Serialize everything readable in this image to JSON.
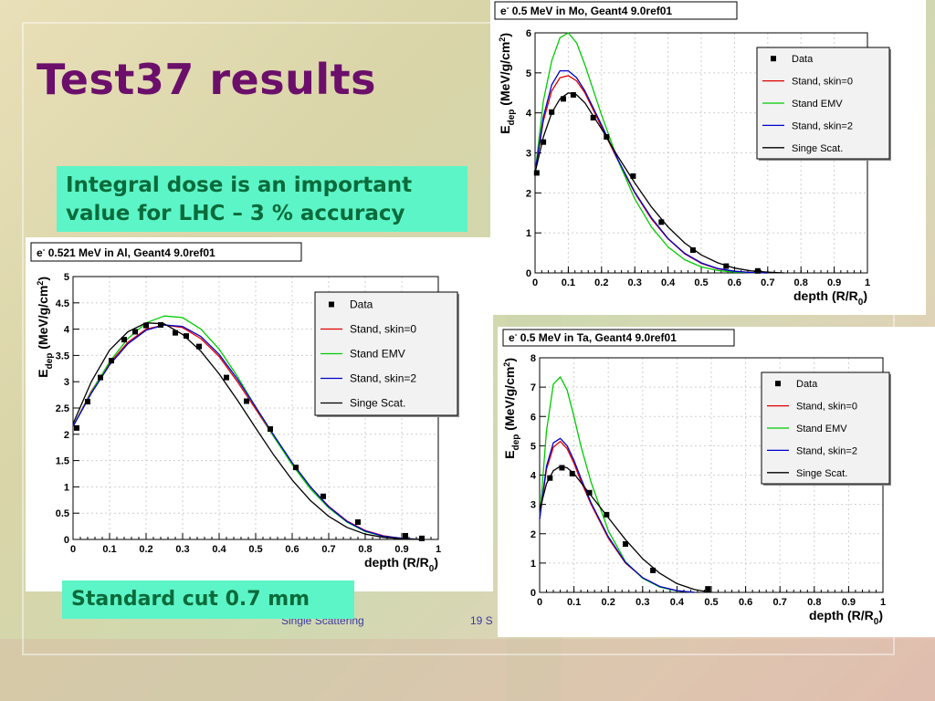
{
  "slide": {
    "title": "Test37 results",
    "note_lines": [
      "Integral dose is an important",
      "value for LHC – 3 % accuracy"
    ],
    "cut_label": "Standard cut 0.7 mm",
    "footer_left": "Single Scattering",
    "footer_right": "19 S"
  },
  "colors": {
    "title": "#6b0f6b",
    "box_bg": "#5cf5c8",
    "box_text": "#0b6b3a",
    "data": "#000000",
    "stand_skin0": "#e00000",
    "stand_emv": "#00cc00",
    "stand_skin2": "#0000cc",
    "singe_scat": "#000000"
  },
  "chart_data": [
    {
      "id": "al",
      "type": "line",
      "title_prefix": "e",
      "title_sup": "-",
      "title_rest": " 0.521 MeV in Al, Geant4 9.0ref01",
      "xlabel_main": "depth (R/R",
      "xlabel_sub": "0",
      "xlabel_end": ")",
      "ylabel_main": "E",
      "ylabel_sub": "dep",
      "ylabel_unit": " (MeV/g/cm",
      "ylabel_sup": "2",
      "ylabel_end": ")",
      "xlim": [
        0,
        1
      ],
      "ylim": [
        0,
        5
      ],
      "xticks": [
        0,
        0.1,
        0.2,
        0.3,
        0.4,
        0.5,
        0.6,
        0.7,
        0.8,
        0.9,
        1
      ],
      "xtick_labels": [
        "0",
        "0.1",
        "0.2",
        "0.3",
        "0.4",
        "0.5",
        "0.6",
        "0.7",
        "0.8",
        "0.9",
        "1"
      ],
      "yticks": [
        0,
        0.5,
        1,
        1.5,
        2,
        2.5,
        3,
        3.5,
        4,
        4.5,
        5
      ],
      "ytick_labels": [
        "0",
        "0.5",
        "1",
        "1.5",
        "2",
        "2.5",
        "3",
        "3.5",
        "4",
        "4.5",
        "5"
      ],
      "grid": true,
      "legend_position": "top-right",
      "points": {
        "name": "Data",
        "x": [
          0.01,
          0.04,
          0.075,
          0.105,
          0.14,
          0.17,
          0.2,
          0.24,
          0.28,
          0.31,
          0.345,
          0.42,
          0.475,
          0.54,
          0.61,
          0.685,
          0.78,
          0.91,
          0.955
        ],
        "y": [
          2.12,
          2.62,
          3.08,
          3.4,
          3.8,
          3.95,
          4.07,
          4.08,
          3.93,
          3.87,
          3.67,
          3.08,
          2.63,
          2.1,
          1.37,
          0.82,
          0.33,
          0.07,
          0.02
        ]
      },
      "series": [
        {
          "name": "Stand, skin=0",
          "color": "#e00000",
          "x": [
            0,
            0.05,
            0.1,
            0.15,
            0.2,
            0.25,
            0.3,
            0.35,
            0.4,
            0.45,
            0.5,
            0.55,
            0.6,
            0.65,
            0.7,
            0.75,
            0.8,
            0.85,
            0.9,
            0.95
          ],
          "y": [
            2.15,
            2.82,
            3.35,
            3.75,
            4.0,
            4.08,
            4.03,
            3.82,
            3.48,
            3.0,
            2.48,
            1.95,
            1.45,
            1.0,
            0.63,
            0.35,
            0.17,
            0.07,
            0.02,
            0
          ]
        },
        {
          "name": "Stand EMV",
          "color": "#00cc00",
          "x": [
            0,
            0.05,
            0.1,
            0.15,
            0.2,
            0.25,
            0.3,
            0.35,
            0.4,
            0.45,
            0.5,
            0.55,
            0.6,
            0.65,
            0.7,
            0.75,
            0.8,
            0.85,
            0.9,
            0.95
          ],
          "y": [
            2.15,
            2.8,
            3.38,
            3.82,
            4.12,
            4.25,
            4.22,
            4.0,
            3.62,
            3.1,
            2.52,
            1.95,
            1.42,
            0.96,
            0.6,
            0.33,
            0.15,
            0.06,
            0.02,
            0
          ]
        },
        {
          "name": "Stand, skin=2",
          "color": "#0000cc",
          "x": [
            0,
            0.05,
            0.1,
            0.15,
            0.2,
            0.25,
            0.3,
            0.35,
            0.4,
            0.45,
            0.5,
            0.55,
            0.6,
            0.65,
            0.7,
            0.75,
            0.8,
            0.85,
            0.9,
            0.95
          ],
          "y": [
            2.15,
            2.78,
            3.32,
            3.72,
            3.98,
            4.08,
            4.05,
            3.86,
            3.52,
            3.05,
            2.52,
            1.98,
            1.46,
            1.0,
            0.62,
            0.34,
            0.16,
            0.06,
            0.02,
            0
          ]
        },
        {
          "name": "Singe Scat.",
          "color": "#000000",
          "x": [
            0,
            0.05,
            0.1,
            0.15,
            0.2,
            0.25,
            0.3,
            0.35,
            0.4,
            0.45,
            0.5,
            0.55,
            0.6,
            0.65,
            0.7,
            0.75,
            0.8,
            0.85,
            0.9,
            0.95
          ],
          "y": [
            2.2,
            3.0,
            3.6,
            3.95,
            4.12,
            4.1,
            3.9,
            3.58,
            3.15,
            2.65,
            2.12,
            1.6,
            1.13,
            0.74,
            0.44,
            0.23,
            0.1,
            0.04,
            0.01,
            0
          ]
        }
      ]
    },
    {
      "id": "mo",
      "type": "line",
      "title_prefix": "e",
      "title_sup": "-",
      "title_rest": " 0.5 MeV in Mo, Geant4 9.0ref01",
      "xlabel_main": "depth (R/R",
      "xlabel_sub": "0",
      "xlabel_end": ")",
      "ylabel_main": "E",
      "ylabel_sub": "dep",
      "ylabel_unit": " (MeV/g/cm",
      "ylabel_sup": "2",
      "ylabel_end": ")",
      "xlim": [
        0,
        1
      ],
      "ylim": [
        0,
        6
      ],
      "xticks": [
        0,
        0.1,
        0.2,
        0.3,
        0.4,
        0.5,
        0.6,
        0.7,
        0.8,
        0.9,
        1
      ],
      "xtick_labels": [
        "0",
        "0.1",
        "0.2",
        "0.3",
        "0.4",
        "0.5",
        "0.6",
        "0.7",
        "0.8",
        "0.9",
        "1"
      ],
      "yticks": [
        0,
        1,
        2,
        3,
        4,
        5,
        6
      ],
      "ytick_labels": [
        "0",
        "1",
        "2",
        "3",
        "4",
        "5",
        "6"
      ],
      "grid": true,
      "legend_position": "top-right",
      "points": {
        "name": "Data",
        "x": [
          0.005,
          0.025,
          0.05,
          0.085,
          0.115,
          0.175,
          0.215,
          0.295,
          0.38,
          0.475,
          0.575,
          0.67
        ],
        "y": [
          2.5,
          3.27,
          4.02,
          4.35,
          4.45,
          3.88,
          3.4,
          2.42,
          1.27,
          0.57,
          0.17,
          0.05
        ]
      },
      "series": [
        {
          "name": "Stand, skin=0",
          "color": "#e00000",
          "x": [
            0,
            0.025,
            0.05,
            0.075,
            0.1,
            0.125,
            0.15,
            0.2,
            0.25,
            0.3,
            0.35,
            0.4,
            0.45,
            0.5,
            0.55,
            0.6,
            0.65,
            0.7
          ],
          "y": [
            2.5,
            3.8,
            4.55,
            4.88,
            4.93,
            4.8,
            4.5,
            3.65,
            2.8,
            2.0,
            1.35,
            0.85,
            0.48,
            0.24,
            0.1,
            0.04,
            0.01,
            0
          ]
        },
        {
          "name": "Stand EMV",
          "color": "#00cc00",
          "x": [
            0,
            0.025,
            0.05,
            0.075,
            0.1,
            0.125,
            0.15,
            0.2,
            0.25,
            0.3,
            0.35,
            0.4,
            0.45,
            0.5,
            0.55,
            0.6,
            0.65,
            0.7
          ],
          "y": [
            2.5,
            4.3,
            5.3,
            5.88,
            6.0,
            5.75,
            5.2,
            3.95,
            2.8,
            1.85,
            1.15,
            0.65,
            0.33,
            0.15,
            0.06,
            0.02,
            0.01,
            0
          ]
        },
        {
          "name": "Stand, skin=2",
          "color": "#0000cc",
          "x": [
            0,
            0.025,
            0.05,
            0.075,
            0.1,
            0.125,
            0.15,
            0.2,
            0.25,
            0.3,
            0.35,
            0.4,
            0.45,
            0.5,
            0.55,
            0.6,
            0.65,
            0.7
          ],
          "y": [
            2.5,
            3.9,
            4.7,
            5.05,
            5.05,
            4.88,
            4.55,
            3.7,
            2.82,
            2.02,
            1.38,
            0.86,
            0.49,
            0.25,
            0.11,
            0.04,
            0.01,
            0
          ]
        },
        {
          "name": "Singe Scat.",
          "color": "#000000",
          "x": [
            0,
            0.025,
            0.05,
            0.075,
            0.1,
            0.125,
            0.15,
            0.2,
            0.25,
            0.3,
            0.35,
            0.4,
            0.45,
            0.5,
            0.55,
            0.6,
            0.65,
            0.7,
            0.75
          ],
          "y": [
            2.5,
            3.4,
            4.0,
            4.35,
            4.5,
            4.45,
            4.25,
            3.6,
            2.9,
            2.25,
            1.65,
            1.15,
            0.75,
            0.45,
            0.25,
            0.12,
            0.05,
            0.02,
            0
          ]
        }
      ]
    },
    {
      "id": "ta",
      "type": "line",
      "title_prefix": "e",
      "title_sup": "-",
      "title_rest": " 0.5 MeV in Ta, Geant4 9.0ref01",
      "xlabel_main": "depth (R/R",
      "xlabel_sub": "0",
      "xlabel_end": ")",
      "ylabel_main": "E",
      "ylabel_sub": "dep",
      "ylabel_unit": " (MeV/g/cm",
      "ylabel_sup": "2",
      "ylabel_end": ")",
      "xlim": [
        0,
        1
      ],
      "ylim": [
        0,
        8
      ],
      "xticks": [
        0,
        0.1,
        0.2,
        0.3,
        0.4,
        0.5,
        0.6,
        0.7,
        0.8,
        0.9,
        1
      ],
      "xtick_labels": [
        "0",
        "0.1",
        "0.2",
        "0.3",
        "0.4",
        "0.5",
        "0.6",
        "0.7",
        "0.8",
        "0.9",
        "1"
      ],
      "yticks": [
        0,
        1,
        2,
        3,
        4,
        5,
        6,
        7,
        8
      ],
      "ytick_labels": [
        "0",
        "1",
        "2",
        "3",
        "4",
        "5",
        "6",
        "7",
        "8"
      ],
      "grid": true,
      "legend_position": "top-right",
      "points": {
        "name": "Data",
        "x": [
          0.03,
          0.065,
          0.095,
          0.145,
          0.195,
          0.25,
          0.33,
          0.49
        ],
        "y": [
          3.9,
          4.25,
          4.05,
          3.4,
          2.65,
          1.65,
          0.75,
          0.12
        ]
      },
      "series": [
        {
          "name": "Stand, skin=0",
          "color": "#e00000",
          "x": [
            0,
            0.02,
            0.04,
            0.06,
            0.08,
            0.1,
            0.12,
            0.15,
            0.2,
            0.25,
            0.3,
            0.35,
            0.4,
            0.45
          ],
          "y": [
            2.5,
            4.2,
            4.95,
            5.15,
            4.9,
            4.4,
            3.8,
            3.0,
            1.85,
            1.0,
            0.5,
            0.2,
            0.06,
            0
          ]
        },
        {
          "name": "Stand EMV",
          "color": "#00cc00",
          "x": [
            0,
            0.02,
            0.04,
            0.06,
            0.08,
            0.1,
            0.12,
            0.15,
            0.2,
            0.25,
            0.3,
            0.35,
            0.4,
            0.45
          ],
          "y": [
            2.5,
            5.5,
            7.1,
            7.35,
            6.9,
            6.0,
            5.0,
            3.75,
            2.1,
            1.05,
            0.48,
            0.18,
            0.05,
            0
          ]
        },
        {
          "name": "Stand, skin=2",
          "color": "#0000cc",
          "x": [
            0,
            0.02,
            0.04,
            0.06,
            0.08,
            0.1,
            0.12,
            0.15,
            0.2,
            0.25,
            0.3,
            0.35,
            0.4,
            0.45
          ],
          "y": [
            2.5,
            4.3,
            5.1,
            5.25,
            5.0,
            4.5,
            3.9,
            3.05,
            1.9,
            1.02,
            0.5,
            0.2,
            0.06,
            0
          ]
        },
        {
          "name": "Singe Scat.",
          "color": "#000000",
          "x": [
            0,
            0.02,
            0.04,
            0.06,
            0.08,
            0.1,
            0.12,
            0.15,
            0.2,
            0.25,
            0.3,
            0.35,
            0.4,
            0.45,
            0.5
          ],
          "y": [
            2.8,
            3.7,
            4.15,
            4.3,
            4.25,
            4.05,
            3.75,
            3.3,
            2.55,
            1.8,
            1.15,
            0.65,
            0.3,
            0.1,
            0
          ]
        }
      ]
    }
  ]
}
